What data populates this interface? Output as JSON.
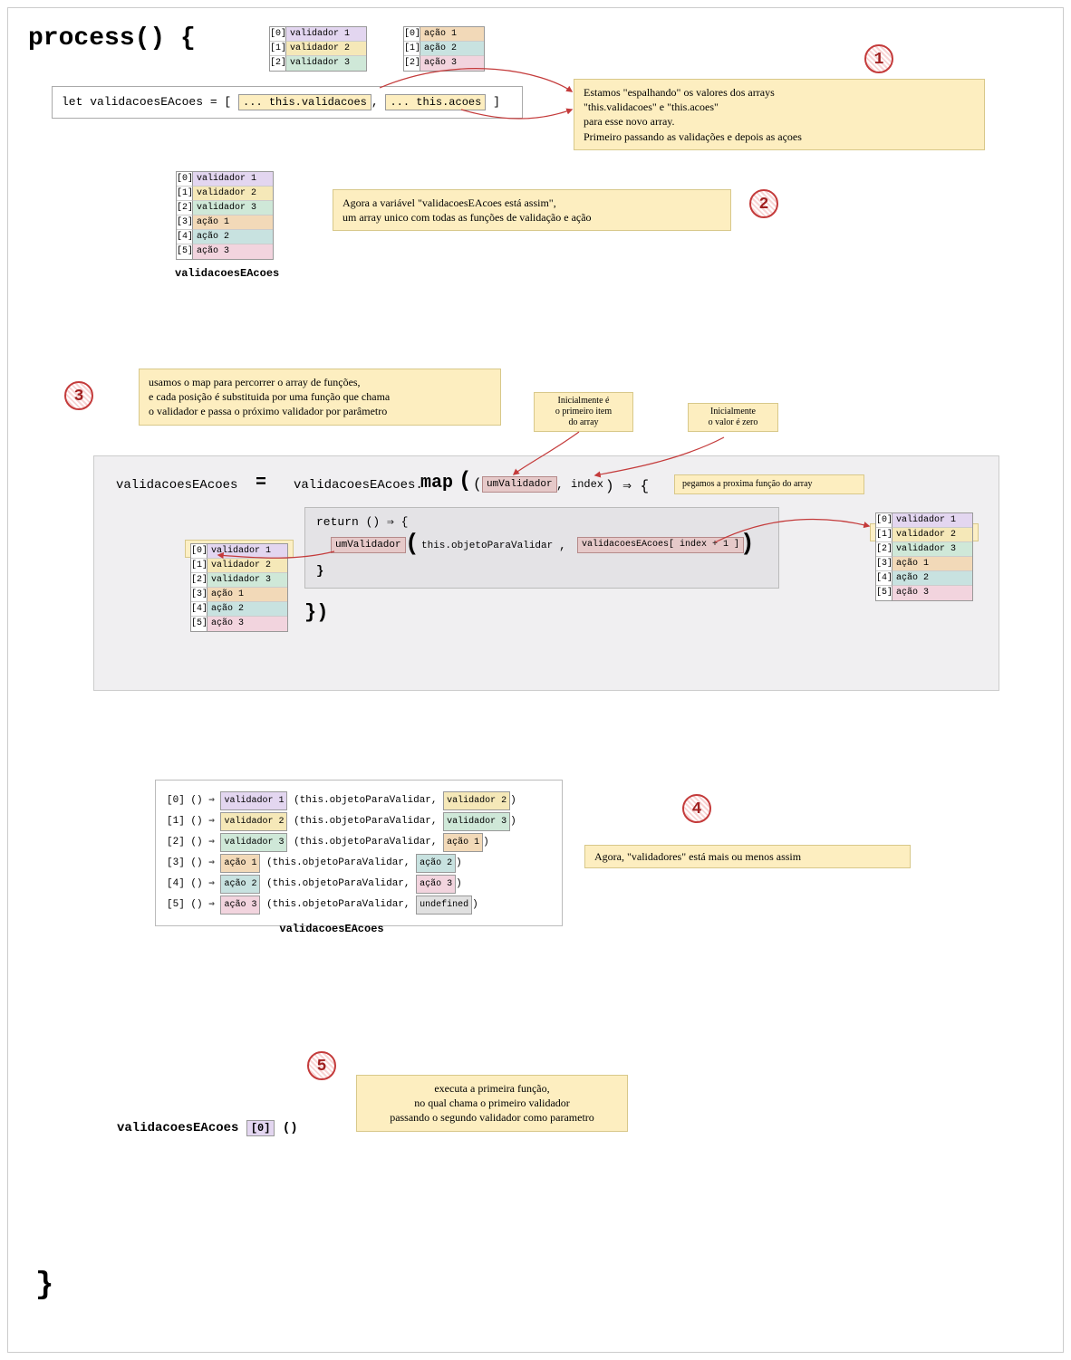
{
  "colors": {
    "purple": "#e3d6f0",
    "yellow": "#f5e8b8",
    "green": "#cfe8d8",
    "orange": "#f2d9b8",
    "teal": "#c8e2e0",
    "pink": "#f2d4de",
    "gray": "#e0e0e0",
    "noteBg": "#fdeec0",
    "panel": "#f0eff1",
    "arrow": "#c43b3b"
  },
  "title": "process() {",
  "braceClose": "}",
  "validadoresArr": [
    {
      "idx": "[0]",
      "label": "validador 1",
      "color": "purple"
    },
    {
      "idx": "[1]",
      "label": "validador 2",
      "color": "yellow"
    },
    {
      "idx": "[2]",
      "label": "validador 3",
      "color": "green"
    }
  ],
  "acoesArr": [
    {
      "idx": "[0]",
      "label": "ação 1",
      "color": "orange"
    },
    {
      "idx": "[1]",
      "label": "ação 2",
      "color": "teal"
    },
    {
      "idx": "[2]",
      "label": "ação 3",
      "color": "pink"
    }
  ],
  "combinedArr": [
    {
      "idx": "[0]",
      "label": "validador 1",
      "color": "purple"
    },
    {
      "idx": "[1]",
      "label": "validador 2",
      "color": "yellow"
    },
    {
      "idx": "[2]",
      "label": "validador 3",
      "color": "green"
    },
    {
      "idx": "[3]",
      "label": "ação 1",
      "color": "orange"
    },
    {
      "idx": "[4]",
      "label": "ação 2",
      "color": "teal"
    },
    {
      "idx": "[5]",
      "label": "ação 3",
      "color": "pink"
    }
  ],
  "codeLine1": {
    "pre": "let validacoesEAcoes = [ ",
    "spread1": "... this.validacoes",
    "mid": ", ",
    "spread2": "... this.acoes",
    "post": " ]"
  },
  "note1": "Estamos \"espalhando\" os valores dos arrays\n\"this.validacoes\" e \"this.acoes\"\npara esse novo array.\nPrimeiro passando as validações e depois as açoes",
  "note2": "Agora a variável \"validacoesEAcoes está assim\",\num array unico com todas as funções de validação e ação",
  "note3": "usamos o map para percorrer o array de funções,\ne cada posição é substituida por uma função que chama\no validador e passa o próximo validador por parâmetro",
  "note4": "Agora, \"validadores\" está mais ou menos assim",
  "note5": "executa a primeira função,\nno qual chama o primeiro validador\npassando o segundo validador como parametro",
  "noteInit1": "Inicialmente é\no primeiro item\ndo array",
  "noteInit2": "Inicialmente\no valor é zero",
  "notePegamos": "pegamos a proxima função do array",
  "combinedLabel": "validacoesEAcoes",
  "map": {
    "lhs": "validacoesEAcoes",
    "eq": "=",
    "rhs_pre": "validacoesEAcoes.",
    "mapWord": "map",
    "open": "(",
    "param1": "umValidador",
    "comma": ", ",
    "param2": "index",
    "arrow": ") ⇒ {",
    "returnLine": "return () ⇒ {",
    "callName": "umValidador",
    "callArg1": "this.objetoParaValidar",
    "callArg2_pre": "validacoesEAcoes[",
    "callArg2_expr": " index + 1 ",
    "callArg2_post": "]",
    "closeInner": "}",
    "closeOuter": "})"
  },
  "results": [
    {
      "idx": "[0]",
      "fn": "validador 1",
      "fnColor": "purple",
      "next": "validador 2",
      "nextColor": "yellow"
    },
    {
      "idx": "[1]",
      "fn": "validador 2",
      "fnColor": "yellow",
      "next": "validador 3",
      "nextColor": "green"
    },
    {
      "idx": "[2]",
      "fn": "validador 3",
      "fnColor": "green",
      "next": "ação 1",
      "nextColor": "orange"
    },
    {
      "idx": "[3]",
      "fn": "ação 1",
      "fnColor": "orange",
      "next": "ação 2",
      "nextColor": "teal"
    },
    {
      "idx": "[4]",
      "fn": "ação 2",
      "fnColor": "teal",
      "next": "ação 3",
      "nextColor": "pink"
    },
    {
      "idx": "[5]",
      "fn": "ação 3",
      "fnColor": "pink",
      "next": "undefined",
      "nextColor": "gray"
    }
  ],
  "resultTemplate": {
    "pre": " () ⇒ ",
    "mid": " (this.objetoParaValidar, ",
    "post": ")"
  },
  "bottomCall": {
    "name": "validacoesEAcoes ",
    "idx": "[0]",
    "call": " ()"
  },
  "badges": {
    "b1": "1",
    "b2": "2",
    "b3": "3",
    "b4": "4",
    "b5": "5"
  }
}
